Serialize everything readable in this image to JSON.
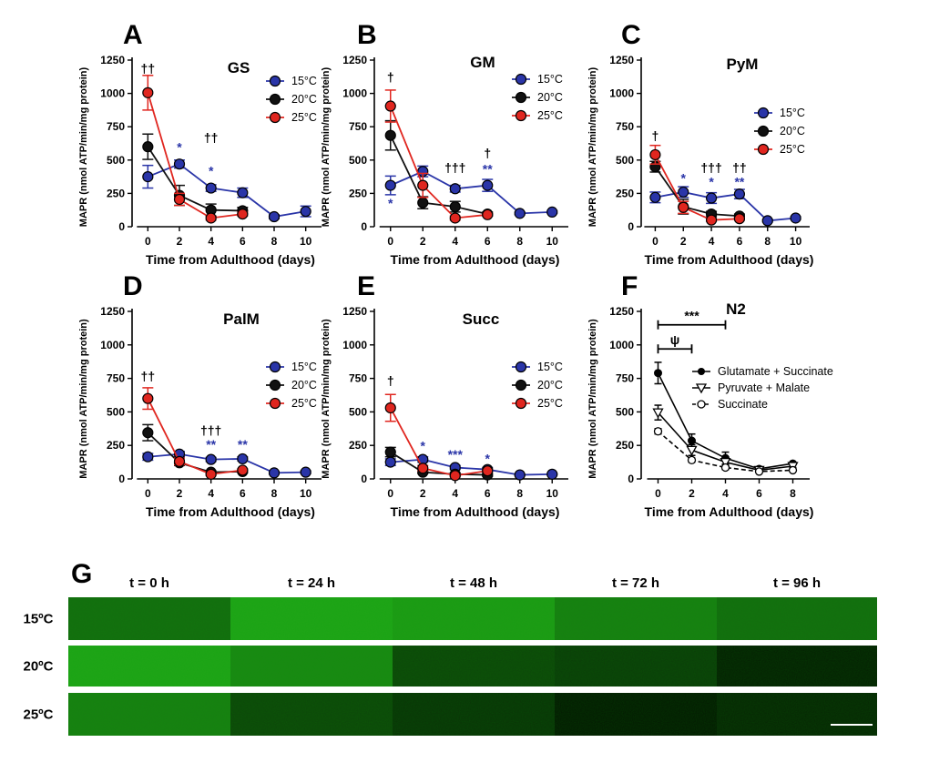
{
  "chart_data": [
    {
      "panel": "A",
      "title": "GS",
      "type": "line",
      "ylabel": "MAPR (nmol ATP/min/mg protein)",
      "xlabel": "Time from Adulthood (days)",
      "ylim": [
        0,
        1250
      ],
      "yticks": [
        "0",
        "250",
        "500",
        "750",
        "1000",
        "1250"
      ],
      "xlim": [
        -1,
        11
      ],
      "xticks": [
        "0",
        "2",
        "4",
        "6",
        "8",
        "10"
      ],
      "legend": "right",
      "series": [
        {
          "name": "15°C",
          "color": "#2a35a8",
          "x": [
            0,
            2,
            4,
            6,
            8,
            10
          ],
          "y": [
            375,
            470,
            290,
            255,
            75,
            115
          ],
          "err": [
            85,
            30,
            25,
            35,
            15,
            40
          ]
        },
        {
          "name": "20°C",
          "color": "#111111",
          "x": [
            0,
            2,
            4,
            6
          ],
          "y": [
            600,
            235,
            125,
            120
          ],
          "err": [
            95,
            75,
            45,
            25
          ]
        },
        {
          "name": "25°C",
          "color": "#e0261f",
          "x": [
            0,
            2,
            4,
            6
          ],
          "y": [
            1005,
            205,
            65,
            95
          ],
          "err": [
            130,
            45,
            15,
            15
          ]
        }
      ],
      "annotations": [
        {
          "text": "††",
          "x": 0,
          "y": 1155,
          "color": "#000000"
        },
        {
          "text": "*",
          "x": 2,
          "y": 565,
          "color": "#2a35a8"
        },
        {
          "text": "††",
          "x": 4,
          "y": 635,
          "color": "#000000"
        },
        {
          "text": "*",
          "x": 4,
          "y": 385,
          "color": "#2a35a8"
        }
      ]
    },
    {
      "panel": "B",
      "title": "GM",
      "type": "line",
      "ylabel": "MAPR (nmol ATP/min/mg protein)",
      "xlabel": "Time from Adulthood (days)",
      "ylim": [
        0,
        1250
      ],
      "yticks": [
        "0",
        "250",
        "500",
        "750",
        "1000",
        "1250"
      ],
      "xlim": [
        -1,
        11
      ],
      "xticks": [
        "0",
        "2",
        "4",
        "6",
        "8",
        "10"
      ],
      "legend": "right",
      "series": [
        {
          "name": "15°C",
          "color": "#2a35a8",
          "x": [
            0,
            2,
            4,
            6,
            8,
            10
          ],
          "y": [
            310,
            415,
            285,
            310,
            100,
            110
          ],
          "err": [
            70,
            40,
            25,
            45,
            10,
            10
          ]
        },
        {
          "name": "20°C",
          "color": "#111111",
          "x": [
            0,
            2,
            4,
            6
          ],
          "y": [
            685,
            180,
            150,
            95
          ],
          "err": [
            110,
            45,
            40,
            15
          ]
        },
        {
          "name": "25°C",
          "color": "#e0261f",
          "x": [
            0,
            2,
            4,
            6
          ],
          "y": [
            905,
            310,
            65,
            90
          ],
          "err": [
            120,
            90,
            15,
            10
          ]
        }
      ],
      "annotations": [
        {
          "text": "†",
          "x": 0,
          "y": 1090,
          "color": "#000000"
        },
        {
          "text": "*",
          "x": 0,
          "y": 145,
          "color": "#2a35a8"
        },
        {
          "text": "†††",
          "x": 4,
          "y": 410,
          "color": "#000000"
        },
        {
          "text": "†",
          "x": 6,
          "y": 520,
          "color": "#000000"
        },
        {
          "text": "**",
          "x": 6,
          "y": 400,
          "color": "#2a35a8"
        }
      ]
    },
    {
      "panel": "C",
      "title": "PyM",
      "type": "line",
      "ylabel": "MAPR (nmol ATP/min/mg protein)",
      "xlabel": "Time from Adulthood (days)",
      "ylim": [
        0,
        1250
      ],
      "yticks": [
        "0",
        "250",
        "500",
        "750",
        "1000",
        "1250"
      ],
      "xlim": [
        -1,
        11
      ],
      "xticks": [
        "0",
        "2",
        "4",
        "6",
        "8",
        "10"
      ],
      "legend": "right",
      "series": [
        {
          "name": "15°C",
          "color": "#2a35a8",
          "x": [
            0,
            2,
            4,
            6,
            8,
            10
          ],
          "y": [
            220,
            260,
            215,
            245,
            45,
            65
          ],
          "err": [
            40,
            40,
            40,
            35,
            10,
            10
          ]
        },
        {
          "name": "20°C",
          "color": "#111111",
          "x": [
            0,
            2,
            4,
            6
          ],
          "y": [
            450,
            150,
            95,
            80
          ],
          "err": [
            40,
            55,
            20,
            15
          ]
        },
        {
          "name": "25°C",
          "color": "#e0261f",
          "x": [
            0,
            2,
            4,
            6
          ],
          "y": [
            540,
            145,
            50,
            60
          ],
          "err": [
            70,
            45,
            10,
            10
          ]
        }
      ],
      "annotations": [
        {
          "text": "†",
          "x": 0,
          "y": 650,
          "color": "#000000"
        },
        {
          "text": "*",
          "x": 2,
          "y": 330,
          "color": "#2a35a8"
        },
        {
          "text": "†††",
          "x": 4,
          "y": 410,
          "color": "#000000"
        },
        {
          "text": "*",
          "x": 4,
          "y": 305,
          "color": "#2a35a8"
        },
        {
          "text": "††",
          "x": 6,
          "y": 410,
          "color": "#000000"
        },
        {
          "text": "**",
          "x": 6,
          "y": 305,
          "color": "#2a35a8"
        }
      ]
    },
    {
      "panel": "D",
      "title": "PalM",
      "type": "line",
      "ylabel": "MAPR (nmol ATP/min/mg protein)",
      "xlabel": "Time from Adulthood (days)",
      "ylim": [
        0,
        1250
      ],
      "yticks": [
        "0",
        "250",
        "500",
        "750",
        "1000",
        "1250"
      ],
      "xlim": [
        -1,
        11
      ],
      "xticks": [
        "0",
        "2",
        "4",
        "6",
        "8",
        "10"
      ],
      "legend": "right",
      "series": [
        {
          "name": "15°C",
          "color": "#2a35a8",
          "x": [
            0,
            2,
            4,
            6,
            8,
            10
          ],
          "y": [
            165,
            185,
            145,
            150,
            45,
            50
          ],
          "err": [
            25,
            20,
            15,
            15,
            10,
            10
          ]
        },
        {
          "name": "20°C",
          "color": "#111111",
          "x": [
            0,
            2,
            4,
            6
          ],
          "y": [
            345,
            120,
            50,
            55
          ],
          "err": [
            60,
            20,
            10,
            10
          ]
        },
        {
          "name": "25°C",
          "color": "#e0261f",
          "x": [
            0,
            2,
            4,
            6
          ],
          "y": [
            600,
            130,
            35,
            65
          ],
          "err": [
            80,
            25,
            10,
            10
          ]
        }
      ],
      "annotations": [
        {
          "text": "††",
          "x": 0,
          "y": 735,
          "color": "#000000"
        },
        {
          "text": "†††",
          "x": 4,
          "y": 330,
          "color": "#000000"
        },
        {
          "text": "**",
          "x": 4,
          "y": 225,
          "color": "#2a35a8"
        },
        {
          "text": "**",
          "x": 6,
          "y": 225,
          "color": "#2a35a8"
        }
      ]
    },
    {
      "panel": "E",
      "title": "Succ",
      "type": "line",
      "ylabel": "MAPR (nmol ATP/min/mg protein)",
      "xlabel": "Time from Adulthood (days)",
      "ylim": [
        0,
        1250
      ],
      "yticks": [
        "0",
        "250",
        "500",
        "750",
        "1000",
        "1250"
      ],
      "xlim": [
        -1,
        11
      ],
      "xticks": [
        "0",
        "2",
        "4",
        "6",
        "8",
        "10"
      ],
      "legend": "right",
      "series": [
        {
          "name": "15°C",
          "color": "#2a35a8",
          "x": [
            0,
            2,
            4,
            6,
            8,
            10
          ],
          "y": [
            125,
            145,
            85,
            70,
            30,
            35
          ],
          "err": [
            25,
            20,
            15,
            15,
            5,
            5
          ]
        },
        {
          "name": "20°C",
          "color": "#111111",
          "x": [
            0,
            2,
            4,
            6
          ],
          "y": [
            200,
            50,
            35,
            30
          ],
          "err": [
            35,
            10,
            10,
            10
          ]
        },
        {
          "name": "25°C",
          "color": "#e0261f",
          "x": [
            0,
            2,
            4,
            6
          ],
          "y": [
            530,
            80,
            25,
            60
          ],
          "err": [
            100,
            20,
            10,
            10
          ]
        }
      ],
      "annotations": [
        {
          "text": "†",
          "x": 0,
          "y": 700,
          "color": "#000000"
        },
        {
          "text": "*",
          "x": 2,
          "y": 215,
          "color": "#2a35a8"
        },
        {
          "text": "***",
          "x": 4,
          "y": 150,
          "color": "#2a35a8"
        },
        {
          "text": "*",
          "x": 6,
          "y": 120,
          "color": "#2a35a8"
        }
      ]
    },
    {
      "panel": "F",
      "title": "N2",
      "type": "line",
      "ylabel": "MAPR (nmol ATP/min/mg protein)",
      "xlabel": "Time from Adulthood (days)",
      "ylim": [
        0,
        1250
      ],
      "yticks": [
        "0",
        "250",
        "500",
        "750",
        "1000",
        "1250"
      ],
      "xlim": [
        -1,
        9
      ],
      "xticks": [
        "0",
        "2",
        "4",
        "6",
        "8"
      ],
      "legend": "right",
      "series": [
        {
          "name": "Glutamate + Succinate",
          "marker": "filled-circle",
          "dash": false,
          "color": "#000000",
          "x": [
            0,
            2,
            4,
            6,
            8
          ],
          "y": [
            790,
            285,
            155,
            75,
            115
          ],
          "err": [
            80,
            50,
            45,
            10,
            10
          ]
        },
        {
          "name": "Pyruvate + Malate",
          "marker": "triangle-down",
          "dash": false,
          "color": "#000000",
          "x": [
            0,
            2,
            4,
            6,
            8
          ],
          "y": [
            495,
            215,
            125,
            65,
            95
          ],
          "err": [
            55,
            40,
            30,
            10,
            10
          ]
        },
        {
          "name": "Succinate",
          "marker": "open-circle",
          "dash": true,
          "color": "#000000",
          "x": [
            0,
            2,
            4,
            6,
            8
          ],
          "y": [
            355,
            140,
            85,
            55,
            65
          ],
          "err": [
            20,
            15,
            15,
            10,
            10
          ]
        }
      ],
      "brackets": [
        {
          "text": "***",
          "x1": 0,
          "x2": 4,
          "y": 1150
        },
        {
          "text": "ψ",
          "x1": 0,
          "x2": 2,
          "y": 970
        }
      ]
    }
  ],
  "panel_g": {
    "label": "G",
    "times": [
      "t = 0 h",
      "t = 24 h",
      "t = 48 h",
      "t = 72 h",
      "t = 96 h"
    ],
    "rows": [
      "15ºC",
      "20ºC",
      "25ºC"
    ],
    "brightness": [
      [
        0.55,
        0.85,
        0.8,
        0.65,
        0.55
      ],
      [
        0.85,
        0.7,
        0.35,
        0.3,
        0.15
      ],
      [
        0.65,
        0.35,
        0.25,
        0.12,
        0.18
      ]
    ],
    "tint": "#27c21d"
  }
}
